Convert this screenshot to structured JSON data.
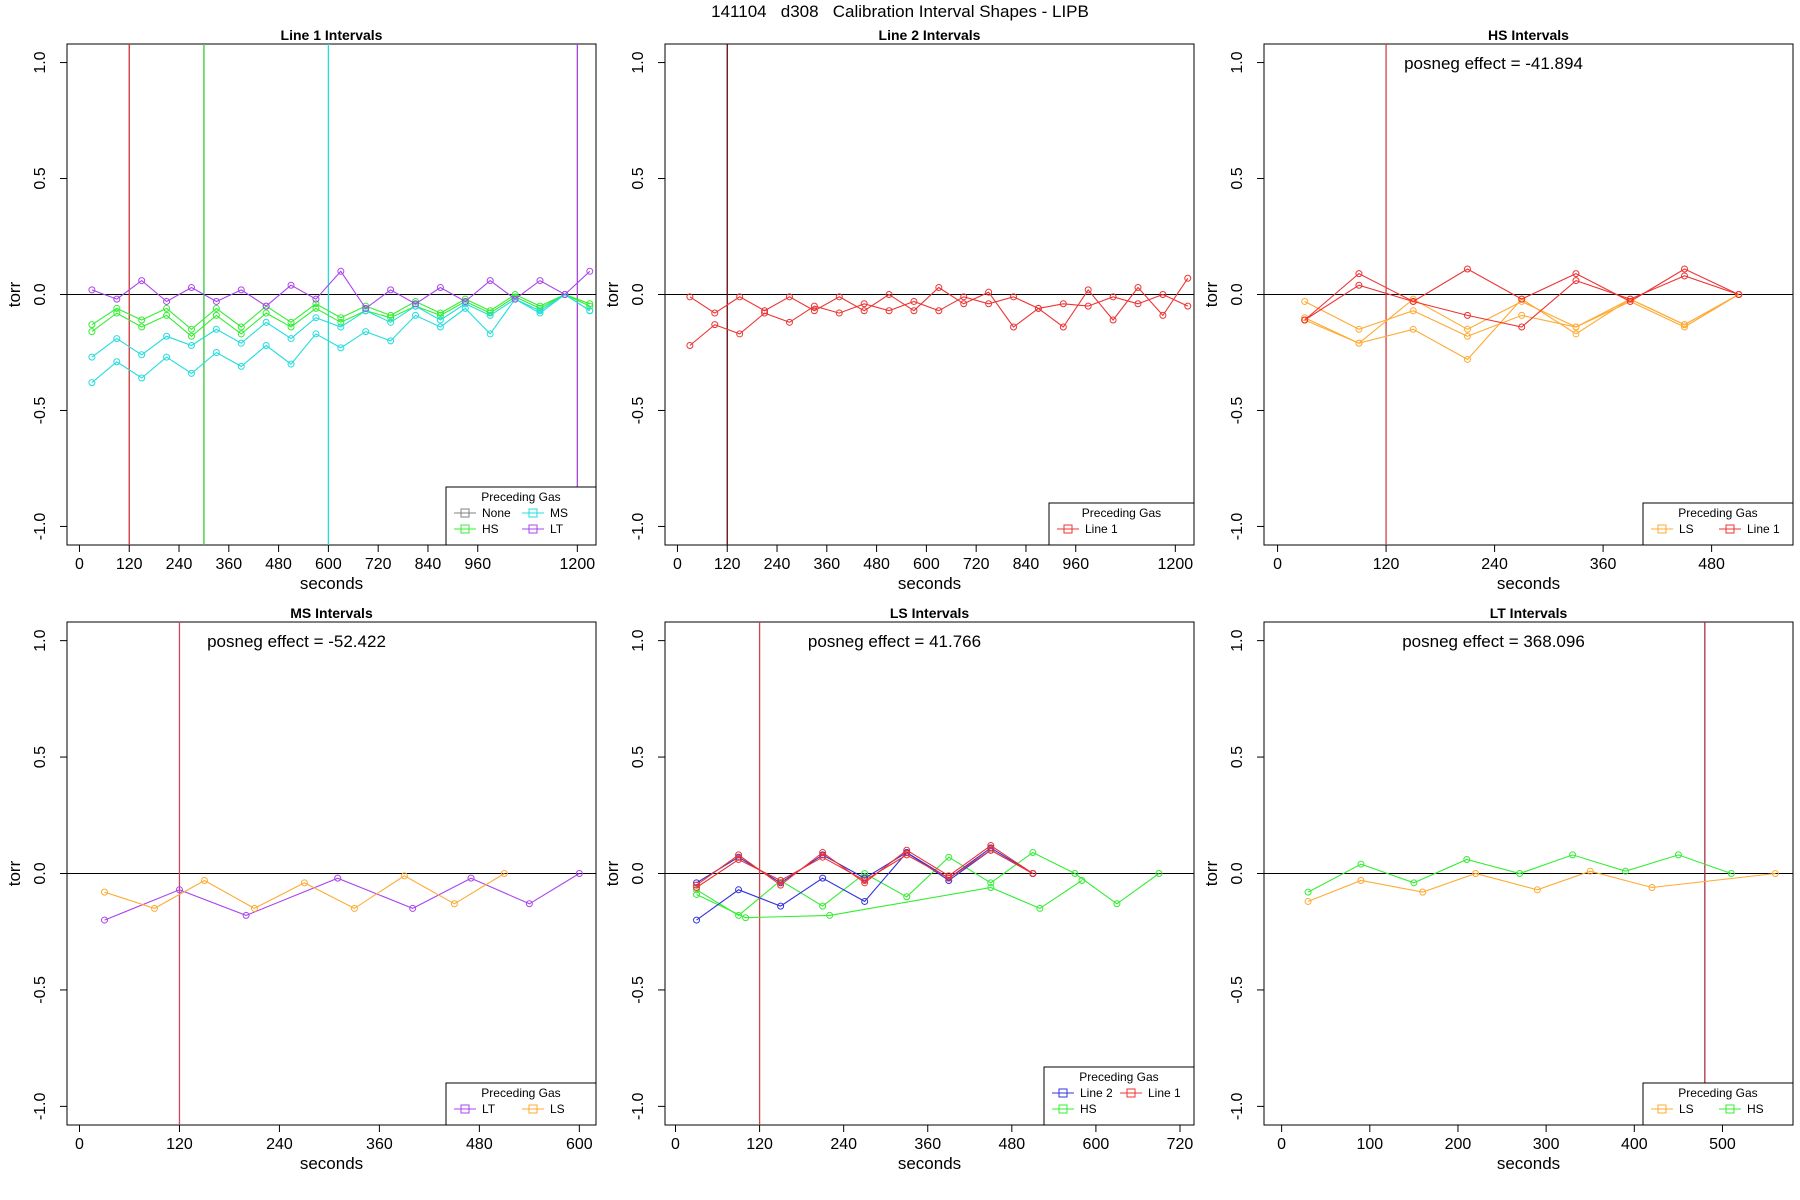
{
  "figure": {
    "title": "141104   d308   Calibration Interval Shapes - LIPB"
  },
  "colors": {
    "None": "#808080",
    "HS": "#33ee33",
    "MS": "#22dddd",
    "LT": "#aa44ee",
    "LS": "#ffaa33",
    "Line 1": "#ee3333",
    "Line 2": "#3333dd"
  },
  "chart_data": [
    {
      "type": "line",
      "title": "Line 1 Intervals",
      "xlabel": "seconds",
      "ylabel": "torr",
      "xlim": [
        -30,
        1245
      ],
      "ylim": [
        -1.08,
        1.08
      ],
      "xticks": [
        0,
        120,
        240,
        360,
        480,
        600,
        720,
        840,
        960,
        1200
      ],
      "yticks": [
        -1.0,
        -0.5,
        0.0,
        0.5,
        1.0
      ],
      "vlines": [
        {
          "x": 120,
          "color": "#cc3333"
        },
        {
          "x": 300,
          "color": "#33cc33"
        },
        {
          "x": 600,
          "color": "#22dddd"
        },
        {
          "x": 1200,
          "color": "#aa44dd"
        }
      ],
      "hline": 0,
      "annotation": "",
      "legend": {
        "title": "Preceding Gas",
        "position": "bottom-right",
        "ncol": 2,
        "entries": [
          "None",
          "MS",
          "HS",
          "LT"
        ]
      },
      "series": [
        {
          "name": "HS",
          "x": [
            30,
            90,
            150,
            210,
            270,
            330,
            390,
            450,
            510,
            570,
            630,
            690,
            750,
            810,
            870,
            930,
            990,
            1050,
            1110,
            1170,
            1230
          ],
          "y": [
            -0.13,
            -0.06,
            -0.11,
            -0.06,
            -0.15,
            -0.06,
            -0.14,
            -0.05,
            -0.12,
            -0.04,
            -0.1,
            -0.05,
            -0.09,
            -0.03,
            -0.08,
            -0.02,
            -0.07,
            0.0,
            -0.05,
            0.0,
            -0.04
          ]
        },
        {
          "name": "HS",
          "x": [
            30,
            90,
            150,
            210,
            270,
            330,
            390,
            450,
            510,
            570,
            630,
            690,
            750,
            810,
            870,
            930,
            990,
            1050,
            1110,
            1170,
            1230
          ],
          "y": [
            -0.16,
            -0.08,
            -0.14,
            -0.09,
            -0.18,
            -0.09,
            -0.17,
            -0.08,
            -0.14,
            -0.06,
            -0.12,
            -0.07,
            -0.1,
            -0.05,
            -0.09,
            -0.03,
            -0.08,
            -0.01,
            -0.06,
            0.0,
            -0.05
          ]
        },
        {
          "name": "MS",
          "x": [
            30,
            90,
            150,
            210,
            270,
            330,
            390,
            450,
            510,
            570,
            630,
            690,
            750,
            810,
            870,
            930,
            990,
            1050,
            1110,
            1170,
            1230
          ],
          "y": [
            -0.27,
            -0.19,
            -0.26,
            -0.18,
            -0.22,
            -0.15,
            -0.21,
            -0.12,
            -0.19,
            -0.1,
            -0.14,
            -0.07,
            -0.12,
            -0.05,
            -0.11,
            -0.04,
            -0.09,
            -0.02,
            -0.07,
            0.0,
            -0.07
          ]
        },
        {
          "name": "MS",
          "x": [
            30,
            90,
            150,
            210,
            270,
            330,
            390,
            450,
            510,
            570,
            630,
            690,
            750,
            810,
            870,
            930,
            990,
            1050,
            1110,
            1170,
            1230
          ],
          "y": [
            -0.38,
            -0.29,
            -0.36,
            -0.27,
            -0.34,
            -0.25,
            -0.31,
            -0.22,
            -0.3,
            -0.17,
            -0.23,
            -0.16,
            -0.2,
            -0.09,
            -0.14,
            -0.06,
            -0.17,
            -0.02,
            -0.08,
            0.0,
            -0.07
          ]
        },
        {
          "name": "LT",
          "x": [
            30,
            90,
            150,
            210,
            270,
            330,
            390,
            450,
            510,
            570,
            630,
            690,
            750,
            810,
            870,
            930,
            990,
            1050,
            1110,
            1170,
            1230
          ],
          "y": [
            0.02,
            -0.02,
            0.06,
            -0.03,
            0.03,
            -0.03,
            0.02,
            -0.05,
            0.04,
            -0.02,
            0.1,
            -0.06,
            0.02,
            -0.04,
            0.03,
            -0.03,
            0.06,
            -0.02,
            0.06,
            0.0,
            0.1
          ]
        }
      ]
    },
    {
      "type": "line",
      "title": "Line 2 Intervals",
      "xlabel": "seconds",
      "ylabel": "torr",
      "xlim": [
        -30,
        1245
      ],
      "ylim": [
        -1.08,
        1.08
      ],
      "xticks": [
        0,
        120,
        240,
        360,
        480,
        600,
        720,
        840,
        960,
        1200
      ],
      "yticks": [
        -1.0,
        -0.5,
        0.0,
        0.5,
        1.0
      ],
      "vlines": [
        {
          "x": 120,
          "color": "#660000"
        }
      ],
      "hline": 0,
      "annotation": "",
      "legend": {
        "title": "Preceding Gas",
        "position": "bottom-right",
        "ncol": 1,
        "entries": [
          "Line 1"
        ]
      },
      "series": [
        {
          "name": "Line 1",
          "x": [
            30,
            90,
            150,
            210,
            270,
            330,
            390,
            450,
            510,
            570,
            630,
            690,
            750,
            810,
            870,
            930,
            990,
            1050,
            1110,
            1170,
            1230
          ],
          "y": [
            -0.22,
            -0.13,
            -0.17,
            -0.08,
            -0.12,
            -0.05,
            -0.08,
            -0.04,
            -0.07,
            -0.03,
            -0.07,
            -0.01,
            -0.04,
            -0.01,
            -0.06,
            -0.04,
            -0.05,
            -0.01,
            -0.04,
            0.0,
            -0.05
          ]
        },
        {
          "name": "Line 1",
          "x": [
            30,
            90,
            150,
            210,
            270,
            330,
            390,
            450,
            510,
            570,
            630,
            690,
            750,
            810,
            870,
            930,
            990,
            1050,
            1110,
            1170,
            1230
          ],
          "y": [
            -0.01,
            -0.08,
            -0.01,
            -0.07,
            -0.01,
            -0.07,
            -0.01,
            -0.07,
            0.0,
            -0.07,
            0.03,
            -0.04,
            0.01,
            -0.14,
            -0.06,
            -0.14,
            0.02,
            -0.11,
            0.03,
            -0.09,
            0.07
          ]
        }
      ]
    },
    {
      "type": "line",
      "title": "HS Intervals",
      "xlabel": "seconds",
      "ylabel": "torr",
      "xlim": [
        -15,
        570
      ],
      "ylim": [
        -1.08,
        1.08
      ],
      "xticks": [
        0,
        120,
        240,
        360,
        480
      ],
      "yticks": [
        -1.0,
        -0.5,
        0.0,
        0.5,
        1.0
      ],
      "vlines": [
        {
          "x": 120,
          "color": "#cc4444"
        }
      ],
      "hline": 0,
      "annotation": "posneg effect = -41.894",
      "legend": {
        "title": "Preceding Gas",
        "position": "bottom-right",
        "ncol": 2,
        "entries": [
          "LS",
          "Line 1"
        ]
      },
      "series": [
        {
          "name": "LS",
          "x": [
            30,
            90,
            150,
            210,
            270,
            330,
            390,
            450,
            510
          ],
          "y": [
            -0.11,
            -0.21,
            -0.15,
            -0.28,
            -0.02,
            -0.17,
            -0.02,
            -0.13,
            0.0
          ]
        },
        {
          "name": "LS",
          "x": [
            30,
            90,
            150,
            210,
            270,
            330,
            390,
            450,
            510
          ],
          "y": [
            -0.03,
            -0.15,
            -0.07,
            -0.18,
            -0.09,
            -0.14,
            -0.03,
            -0.14,
            0.0
          ]
        },
        {
          "name": "LS",
          "x": [
            30,
            90,
            150,
            210,
            270,
            330,
            390,
            450,
            510
          ],
          "y": [
            -0.1,
            -0.21,
            -0.02,
            -0.15,
            -0.03,
            -0.14,
            -0.02,
            -0.13,
            0.0
          ]
        },
        {
          "name": "Line 1",
          "x": [
            30,
            90,
            150,
            210,
            270,
            330,
            390,
            450,
            510
          ],
          "y": [
            -0.11,
            0.09,
            -0.03,
            0.11,
            -0.02,
            0.09,
            -0.03,
            0.11,
            0.0
          ]
        },
        {
          "name": "Line 1",
          "x": [
            30,
            90,
            150,
            210,
            270,
            330,
            390,
            450,
            510
          ],
          "y": [
            -0.11,
            0.04,
            -0.03,
            -0.09,
            -0.14,
            0.06,
            -0.02,
            0.08,
            0.0
          ]
        }
      ]
    },
    {
      "type": "line",
      "title": "MS Intervals",
      "xlabel": "seconds",
      "ylabel": "torr",
      "xlim": [
        -15,
        620
      ],
      "ylim": [
        -1.08,
        1.08
      ],
      "xticks": [
        0,
        120,
        240,
        360,
        480,
        600
      ],
      "yticks": [
        -1.0,
        -0.5,
        0.0,
        0.5,
        1.0
      ],
      "vlines": [
        {
          "x": 120,
          "color": "#cc4466"
        }
      ],
      "hline": 0,
      "annotation": "posneg effect = -52.422",
      "legend": {
        "title": "Preceding Gas",
        "position": "bottom-right",
        "ncol": 2,
        "entries": [
          "LT",
          "LS"
        ]
      },
      "series": [
        {
          "name": "LT",
          "x": [
            30,
            120,
            200,
            310,
            400,
            470,
            540,
            600
          ],
          "y": [
            -0.2,
            -0.07,
            -0.18,
            -0.02,
            -0.15,
            -0.02,
            -0.13,
            0.0
          ]
        },
        {
          "name": "LS",
          "x": [
            30,
            90,
            150,
            210,
            270,
            330,
            390,
            450,
            510
          ],
          "y": [
            -0.08,
            -0.15,
            -0.03,
            -0.15,
            -0.04,
            -0.15,
            -0.01,
            -0.13,
            0.0
          ]
        }
      ]
    },
    {
      "type": "line",
      "title": "LS Intervals",
      "xlabel": "seconds",
      "ylabel": "torr",
      "xlim": [
        -15,
        740
      ],
      "ylim": [
        -1.08,
        1.08
      ],
      "xticks": [
        0,
        120,
        240,
        360,
        480,
        600,
        720
      ],
      "yticks": [
        -1.0,
        -0.5,
        0.0,
        0.5,
        1.0
      ],
      "vlines": [
        {
          "x": 120,
          "color": "#cc4444"
        }
      ],
      "hline": 0,
      "annotation": "posneg effect = 41.766",
      "legend": {
        "title": "Preceding Gas",
        "position": "bottom-right",
        "ncol": 2,
        "entries": [
          "Line 2",
          "Line 1",
          "HS"
        ]
      },
      "series": [
        {
          "name": "HS",
          "x": [
            30,
            90,
            150,
            210,
            270,
            330,
            390,
            450,
            510,
            570,
            630,
            690
          ],
          "y": [
            -0.07,
            -0.18,
            -0.03,
            -0.14,
            0.0,
            -0.1,
            0.07,
            -0.04,
            0.09,
            0.0,
            -0.13,
            0.0
          ]
        },
        {
          "name": "HS",
          "x": [
            30,
            100,
            220,
            450,
            520,
            580
          ],
          "y": [
            -0.09,
            -0.19,
            -0.18,
            -0.06,
            -0.15,
            -0.03
          ]
        },
        {
          "name": "Line 2",
          "x": [
            30,
            90,
            150,
            210,
            270,
            330,
            390,
            450,
            510
          ],
          "y": [
            -0.2,
            -0.07,
            -0.14,
            -0.02,
            -0.12,
            0.09,
            -0.03,
            0.1,
            0.0
          ]
        },
        {
          "name": "Line 2",
          "x": [
            30,
            90,
            150,
            210,
            270,
            330,
            390,
            450,
            510
          ],
          "y": [
            -0.04,
            0.07,
            -0.04,
            0.08,
            -0.02,
            0.09,
            -0.02,
            0.11,
            0.0
          ]
        },
        {
          "name": "Line 1",
          "x": [
            30,
            90,
            150,
            210,
            270,
            330,
            390,
            450,
            510
          ],
          "y": [
            -0.05,
            0.08,
            -0.05,
            0.09,
            -0.04,
            0.1,
            -0.01,
            0.12,
            0.0
          ]
        },
        {
          "name": "Line 1",
          "x": [
            30,
            90,
            150,
            210,
            270,
            330,
            390,
            450,
            510
          ],
          "y": [
            -0.06,
            0.06,
            -0.03,
            0.07,
            -0.03,
            0.08,
            -0.02,
            0.1,
            0.0
          ]
        }
      ]
    },
    {
      "type": "line",
      "title": "LT Intervals",
      "xlabel": "seconds",
      "ylabel": "torr",
      "xlim": [
        -20,
        580
      ],
      "ylim": [
        -1.08,
        1.08
      ],
      "xticks": [
        0,
        100,
        200,
        300,
        400,
        500
      ],
      "yticks": [
        -1.0,
        -0.5,
        0.0,
        0.5,
        1.0
      ],
      "vlines": [
        {
          "x": 480,
          "color": "#aa3344"
        }
      ],
      "hline": 0,
      "annotation": "posneg effect = 368.096",
      "legend": {
        "title": "Preceding Gas",
        "position": "bottom-right",
        "ncol": 2,
        "entries": [
          "LS",
          "HS"
        ]
      },
      "series": [
        {
          "name": "HS",
          "x": [
            30,
            90,
            150,
            210,
            270,
            330,
            390,
            450,
            510
          ],
          "y": [
            -0.08,
            0.04,
            -0.04,
            0.06,
            0.0,
            0.08,
            0.01,
            0.08,
            0.0
          ]
        },
        {
          "name": "LS",
          "x": [
            30,
            90,
            160,
            220,
            290,
            350,
            420,
            560
          ],
          "y": [
            -0.12,
            -0.03,
            -0.08,
            0.0,
            -0.07,
            0.01,
            -0.06,
            0.0
          ]
        }
      ]
    }
  ]
}
